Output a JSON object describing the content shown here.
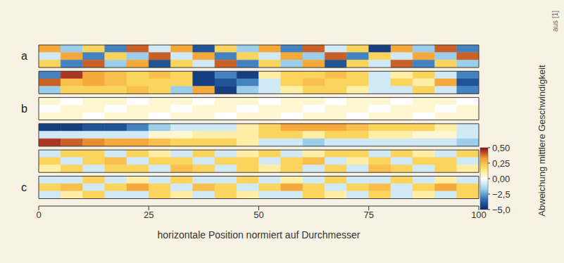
{
  "chart_data": {
    "type": "heatmap",
    "xlabel": "horizontale Position normiert auf Durchmesser",
    "xlim": [
      0,
      100
    ],
    "xticks": [
      0,
      25,
      50,
      75,
      100
    ],
    "bins": [
      0,
      5,
      10,
      15,
      20,
      25,
      30,
      35,
      40,
      45,
      50,
      55,
      60,
      65,
      70,
      75,
      80,
      85,
      90,
      95,
      100
    ],
    "panels": [
      {
        "label": "a",
        "cells": [
          [
            0.3,
            -1.7,
            0.2,
            -3,
            0.4,
            -0.8,
            0.3,
            -4,
            0.2,
            -1.7,
            0.3,
            -3,
            0.4,
            -0.8,
            0.2,
            -4.5,
            0.3,
            -1.7,
            0.4,
            -3
          ],
          [
            -0.8,
            0.3,
            -3,
            0.2,
            -1.7,
            0.4,
            -0.8,
            0.3,
            -3,
            0.2,
            -0.8,
            0.3,
            -1.7,
            0.4,
            -3,
            0.2,
            -0.8,
            0.3,
            -1.7,
            0.4
          ],
          [
            0.2,
            -3,
            0.4,
            -1.7,
            0.3,
            -4,
            0.2,
            -0.8,
            0.4,
            -3,
            0.2,
            -1.7,
            0.3,
            -4,
            0.2,
            -0.8,
            0.4,
            -3,
            0.2,
            -1.7
          ]
        ]
      },
      {
        "cells": [
          [
            -3,
            0.45,
            0.3,
            0.25,
            0.2,
            0.25,
            0.2,
            -4.5,
            -3,
            -4.5,
            0.1,
            0.2,
            0.2,
            0.25,
            0.2,
            -0.8,
            0.1,
            0.2,
            -0.8,
            -3
          ],
          [
            0.4,
            0.25,
            0.3,
            0.25,
            0.2,
            0.2,
            0.2,
            -4.5,
            -4,
            -3,
            -0.8,
            0.2,
            0.25,
            0.2,
            0.2,
            -0.8,
            0.2,
            0.1,
            0.3,
            -4
          ],
          [
            -1.7,
            0.2,
            0.2,
            0.2,
            0.25,
            0.2,
            -1.7,
            0.3,
            -4.5,
            -1.7,
            -0.8,
            0.1,
            0.2,
            0.2,
            0.1,
            -0.8,
            -0.8,
            0.2,
            -0.8,
            -3
          ]
        ]
      },
      {
        "label": "b",
        "cells": [
          [
            0.05,
            0,
            0.05,
            0.05,
            0,
            0.05,
            0.05,
            0,
            0.05,
            0.05,
            0,
            0.05,
            0.05,
            0,
            0.05,
            0.05,
            0,
            0.05,
            0.05,
            0
          ],
          [
            0,
            0.05,
            0.05,
            0,
            0.05,
            0.05,
            0,
            0.05,
            0.05,
            0,
            0.05,
            0.05,
            0,
            0.05,
            0.05,
            0,
            0.05,
            0.05,
            0,
            0.05
          ],
          [
            0.05,
            0.05,
            0,
            0.05,
            0.05,
            0,
            0.05,
            0.05,
            0,
            0.05,
            0.05,
            0,
            0.05,
            0.05,
            0,
            0.05,
            0.05,
            0,
            0.05,
            0.05
          ]
        ]
      },
      {
        "cells": [
          [
            -4.5,
            -4.5,
            -4,
            -4,
            -3,
            -1.7,
            -0.8,
            -0.8,
            -0.8,
            0.1,
            0.2,
            0.3,
            0.3,
            0.3,
            0.25,
            0.2,
            0.2,
            0.2,
            0.1,
            -0.8
          ],
          [
            -0.8,
            -0.8,
            -0.8,
            -0.8,
            -0.8,
            0.05,
            0.05,
            0.1,
            0.1,
            0.1,
            0.2,
            0.2,
            0.1,
            0.2,
            0.2,
            0.1,
            0.1,
            0.05,
            0.05,
            -0.8
          ],
          [
            0.45,
            0.4,
            0.35,
            0.3,
            0.3,
            0.25,
            0.2,
            0.2,
            0.2,
            0.1,
            -0.8,
            -0.8,
            -1.7,
            -0.8,
            -0.8,
            -0.8,
            -0.8,
            -0.8,
            -0.8,
            -1.7
          ]
        ]
      },
      {
        "cells": [
          [
            -0.8,
            0.2,
            0.2,
            -0.8,
            0.2,
            0.1,
            -0.8,
            0.2,
            -0.8,
            0.1,
            0.2,
            -0.8,
            0.1,
            0.2,
            0.2,
            -0.8,
            0.2,
            0.1,
            -0.8,
            0.2
          ],
          [
            0.2,
            -0.8,
            0.2,
            0.25,
            -0.8,
            0.2,
            0.2,
            -0.8,
            0.2,
            0.2,
            -0.8,
            0.2,
            0.25,
            -0.8,
            0.1,
            0.2,
            -0.8,
            0.2,
            0.2,
            -0.8
          ],
          [
            0.1,
            0.2,
            -0.8,
            0.2,
            0.2,
            -0.8,
            0.25,
            0.2,
            -0.8,
            0.2,
            0.1,
            0.2,
            -0.8,
            0.2,
            -0.8,
            0.25,
            0.2,
            -0.8,
            0.2,
            0.1
          ]
        ]
      },
      {
        "label": "c",
        "cells": [
          [
            -0.8,
            -0.8,
            0.2,
            -0.8,
            0.1,
            -0.8,
            0.2,
            -0.8,
            -0.8,
            0.2,
            -0.8,
            0.1,
            -0.8,
            0.2,
            -0.8,
            -0.8,
            0.2,
            -0.8,
            0.1,
            -0.8
          ],
          [
            0.2,
            0.25,
            -0.8,
            0.2,
            0.3,
            0.2,
            -0.8,
            0.25,
            0.2,
            -0.8,
            0.2,
            0.3,
            0.2,
            -0.8,
            0.2,
            0.25,
            -0.8,
            0.2,
            0.3,
            0.2
          ],
          [
            -0.8,
            0.1,
            0.2,
            -0.8,
            -0.8,
            0.2,
            0.1,
            -0.8,
            0.2,
            0.1,
            -0.8,
            -0.8,
            0.2,
            0.1,
            -0.8,
            0.2,
            -0.8,
            0.1,
            -0.8,
            0.2
          ]
        ]
      }
    ],
    "colorbar": {
      "label": "Abweichung mittlere Geschwindigkeit",
      "range": [
        -5,
        0.5
      ],
      "ticks": [
        {
          "value": 0.5,
          "label": "0,50"
        },
        {
          "value": 0.25,
          "label": "0,25"
        },
        {
          "value": 0,
          "label": "0,00"
        },
        {
          "value": -2.5,
          "label": "−2,5"
        },
        {
          "value": -5,
          "label": "−5,0"
        }
      ],
      "colors": [
        "#0b2a6b",
        "#2f6fb5",
        "#9fd0ea",
        "#ffffff",
        "#fde36a",
        "#f29a2e",
        "#8b0a1a"
      ]
    },
    "annotations": [
      "aus [1]"
    ]
  }
}
